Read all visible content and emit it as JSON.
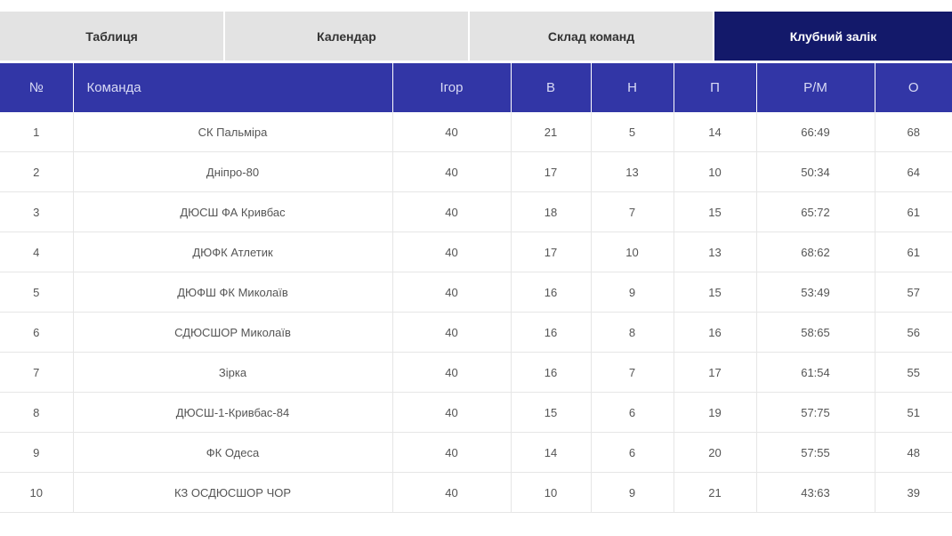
{
  "tabs": [
    {
      "label": "Таблиця",
      "active": false
    },
    {
      "label": "Календар",
      "active": false
    },
    {
      "label": "Склад команд",
      "active": false
    },
    {
      "label": "Клубний залік",
      "active": true
    }
  ],
  "table": {
    "headers": {
      "num": "№",
      "team": "Команда",
      "games": "Ігор",
      "wins": "В",
      "draws": "Н",
      "losses": "П",
      "goals": "Р/М",
      "points": "О"
    },
    "rows": [
      {
        "num": "1",
        "team": "СК Пальміра",
        "games": "40",
        "wins": "21",
        "draws": "5",
        "losses": "14",
        "goals": "66:49",
        "points": "68"
      },
      {
        "num": "2",
        "team": "Дніпро-80",
        "games": "40",
        "wins": "17",
        "draws": "13",
        "losses": "10",
        "goals": "50:34",
        "points": "64"
      },
      {
        "num": "3",
        "team": "ДЮСШ ФА Кривбас",
        "games": "40",
        "wins": "18",
        "draws": "7",
        "losses": "15",
        "goals": "65:72",
        "points": "61"
      },
      {
        "num": "4",
        "team": "ДЮФК Атлетик",
        "games": "40",
        "wins": "17",
        "draws": "10",
        "losses": "13",
        "goals": "68:62",
        "points": "61"
      },
      {
        "num": "5",
        "team": "ДЮФШ ФК Миколаїв",
        "games": "40",
        "wins": "16",
        "draws": "9",
        "losses": "15",
        "goals": "53:49",
        "points": "57"
      },
      {
        "num": "6",
        "team": "СДЮСШОР Миколаїв",
        "games": "40",
        "wins": "16",
        "draws": "8",
        "losses": "16",
        "goals": "58:65",
        "points": "56"
      },
      {
        "num": "7",
        "team": "Зірка",
        "games": "40",
        "wins": "16",
        "draws": "7",
        "losses": "17",
        "goals": "61:54",
        "points": "55"
      },
      {
        "num": "8",
        "team": "ДЮСШ-1-Кривбас-84",
        "games": "40",
        "wins": "15",
        "draws": "6",
        "losses": "19",
        "goals": "57:75",
        "points": "51"
      },
      {
        "num": "9",
        "team": "ФК Одеса",
        "games": "40",
        "wins": "14",
        "draws": "6",
        "losses": "20",
        "goals": "57:55",
        "points": "48"
      },
      {
        "num": "10",
        "team": "КЗ ОСДЮСШОР ЧОР",
        "games": "40",
        "wins": "10",
        "draws": "9",
        "losses": "21",
        "goals": "43:63",
        "points": "39"
      }
    ]
  },
  "colors": {
    "tab_bg": "#e3e3e3",
    "tab_active_bg": "#13196a",
    "header_bg": "#3236a6"
  }
}
